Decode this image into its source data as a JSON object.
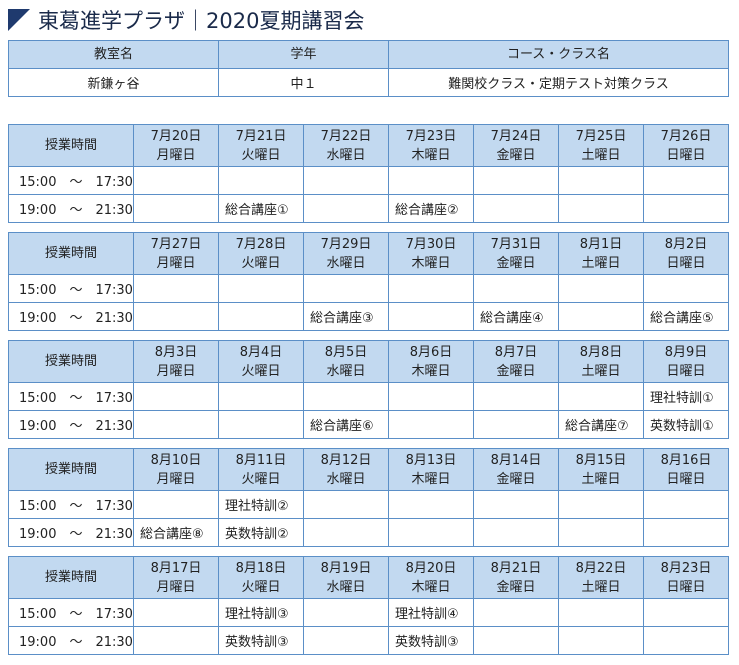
{
  "header": {
    "title": "東葛進学プラザ｜2020夏期講習会"
  },
  "info": {
    "columns": [
      "教室名",
      "学年",
      "コース・クラス名"
    ],
    "values": [
      "新鎌ヶ谷",
      "中１",
      "難関校クラス・定期テスト対策クラス"
    ]
  },
  "weeks": [
    {
      "label": "授業時間",
      "days": [
        {
          "date": "7月20日",
          "weekday": "月曜日"
        },
        {
          "date": "7月21日",
          "weekday": "火曜日"
        },
        {
          "date": "7月22日",
          "weekday": "水曜日"
        },
        {
          "date": "7月23日",
          "weekday": "木曜日"
        },
        {
          "date": "7月24日",
          "weekday": "金曜日"
        },
        {
          "date": "7月25日",
          "weekday": "土曜日"
        },
        {
          "date": "7月26日",
          "weekday": "日曜日"
        }
      ],
      "rows": [
        {
          "time": "15:00　～　17:30",
          "cells": [
            null,
            null,
            null,
            null,
            null,
            null,
            null
          ]
        },
        {
          "time": "19:00　～　21:30",
          "cells": [
            null,
            "総合講座①",
            null,
            "総合講座②",
            null,
            null,
            null
          ]
        }
      ]
    },
    {
      "label": "授業時間",
      "days": [
        {
          "date": "7月27日",
          "weekday": "月曜日"
        },
        {
          "date": "7月28日",
          "weekday": "火曜日"
        },
        {
          "date": "7月29日",
          "weekday": "水曜日"
        },
        {
          "date": "7月30日",
          "weekday": "木曜日"
        },
        {
          "date": "7月31日",
          "weekday": "金曜日"
        },
        {
          "date": "8月1日",
          "weekday": "土曜日"
        },
        {
          "date": "8月2日",
          "weekday": "日曜日"
        }
      ],
      "rows": [
        {
          "time": "15:00　～　17:30",
          "cells": [
            null,
            null,
            null,
            null,
            null,
            null,
            null
          ]
        },
        {
          "time": "19:00　～　21:30",
          "cells": [
            null,
            null,
            "総合講座③",
            null,
            "総合講座④",
            null,
            "総合講座⑤"
          ]
        }
      ]
    },
    {
      "label": "授業時間",
      "days": [
        {
          "date": "8月3日",
          "weekday": "月曜日"
        },
        {
          "date": "8月4日",
          "weekday": "火曜日"
        },
        {
          "date": "8月5日",
          "weekday": "水曜日"
        },
        {
          "date": "8月6日",
          "weekday": "木曜日"
        },
        {
          "date": "8月7日",
          "weekday": "金曜日"
        },
        {
          "date": "8月8日",
          "weekday": "土曜日"
        },
        {
          "date": "8月9日",
          "weekday": "日曜日"
        }
      ],
      "rows": [
        {
          "time": "15:00　～　17:30",
          "cells": [
            null,
            null,
            null,
            null,
            null,
            null,
            "理社特訓①"
          ]
        },
        {
          "time": "19:00　～　21:30",
          "cells": [
            null,
            null,
            "総合講座⑥",
            null,
            null,
            "総合講座⑦",
            "英数特訓①"
          ]
        }
      ]
    },
    {
      "label": "授業時間",
      "days": [
        {
          "date": "8月10日",
          "weekday": "月曜日"
        },
        {
          "date": "8月11日",
          "weekday": "火曜日"
        },
        {
          "date": "8月12日",
          "weekday": "水曜日"
        },
        {
          "date": "8月13日",
          "weekday": "木曜日"
        },
        {
          "date": "8月14日",
          "weekday": "金曜日"
        },
        {
          "date": "8月15日",
          "weekday": "土曜日"
        },
        {
          "date": "8月16日",
          "weekday": "日曜日"
        }
      ],
      "rows": [
        {
          "time": "15:00　～　17:30",
          "cells": [
            null,
            "理社特訓②",
            null,
            null,
            null,
            null,
            null
          ]
        },
        {
          "time": "19:00　～　21:30",
          "cells": [
            "総合講座⑧",
            "英数特訓②",
            null,
            null,
            null,
            null,
            null
          ]
        }
      ]
    },
    {
      "label": "授業時間",
      "days": [
        {
          "date": "8月17日",
          "weekday": "月曜日"
        },
        {
          "date": "8月18日",
          "weekday": "火曜日"
        },
        {
          "date": "8月19日",
          "weekday": "水曜日"
        },
        {
          "date": "8月20日",
          "weekday": "木曜日"
        },
        {
          "date": "8月21日",
          "weekday": "金曜日"
        },
        {
          "date": "8月22日",
          "weekday": "土曜日"
        },
        {
          "date": "8月23日",
          "weekday": "日曜日"
        }
      ],
      "rows": [
        {
          "time": "15:00　～　17:30",
          "cells": [
            null,
            "理社特訓③",
            null,
            "理社特訓④",
            null,
            null,
            null
          ]
        },
        {
          "time": "19:00　～　21:30",
          "cells": [
            null,
            "英数特訓③",
            null,
            "英数特訓③",
            null,
            null,
            null
          ]
        }
      ]
    }
  ]
}
